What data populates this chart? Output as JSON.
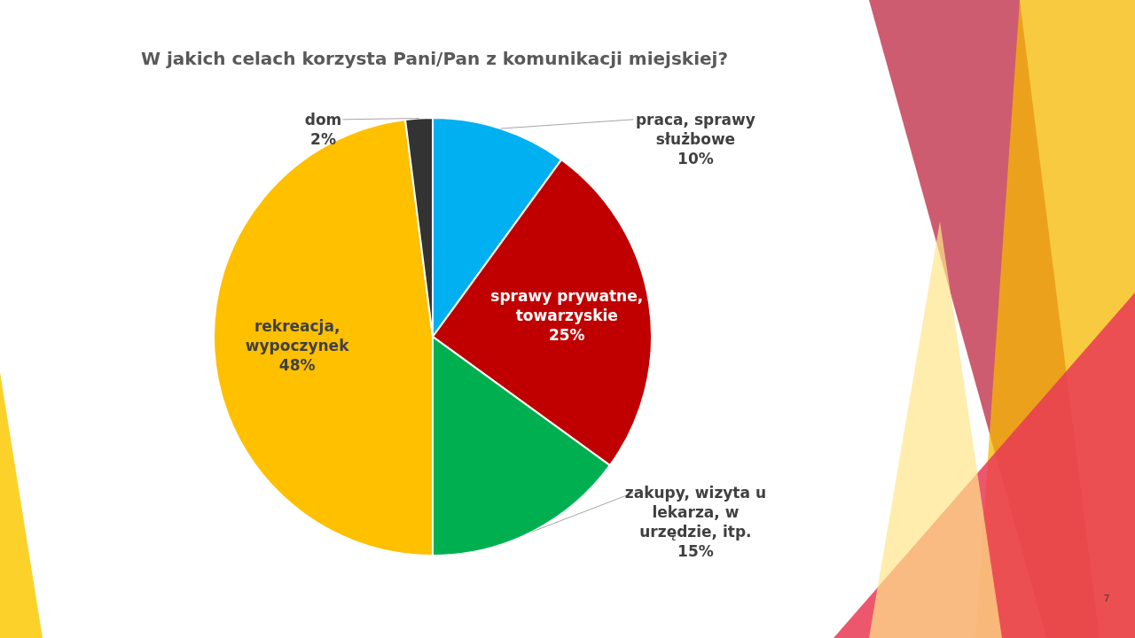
{
  "chart_data": {
    "type": "pie",
    "title": "W jakich celach korzysta Pani/Pan z komunikacji miejskiej?",
    "categories": [
      "praca, sprawy służbowe",
      "sprawy prywatne, towarzyskie",
      "zakupy, wizyta u lekarza, w urzędzie, itp.",
      "rekreacja, wypoczynek",
      "dom"
    ],
    "values": [
      10,
      25,
      15,
      48,
      2
    ],
    "colors": [
      "#00b0f0",
      "#c00000",
      "#00b050",
      "#ffc000",
      "#333333"
    ],
    "value_labels": [
      "10%",
      "25%",
      "15%",
      "48%",
      "2%"
    ],
    "annotations": [
      "7"
    ]
  }
}
